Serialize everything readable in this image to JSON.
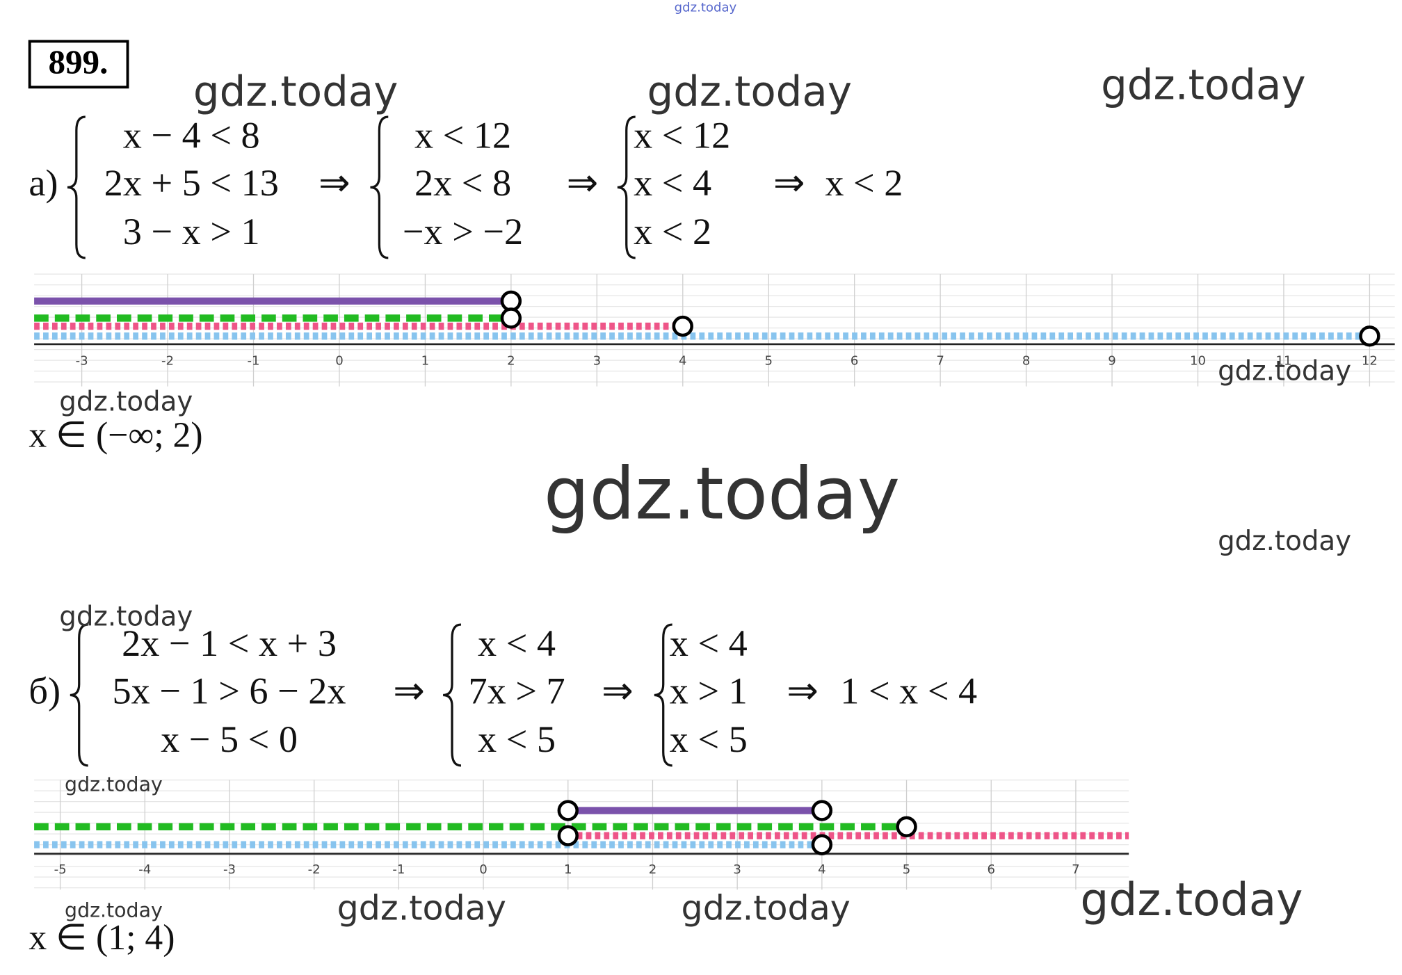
{
  "header": {
    "number": "899.",
    "top_watermark": "gdz.today"
  },
  "arrow": "⇒",
  "parts": [
    {
      "label": "а)",
      "steps": [
        [
          "x − 4 < 8",
          "2x + 5 < 13",
          "3 − x > 1"
        ],
        [
          "x < 12",
          "2x < 8",
          "−x > −2"
        ],
        [
          "x < 12",
          "x < 4",
          "x < 2"
        ]
      ],
      "result": "x < 2",
      "number_line": {
        "ticks": [
          -3,
          -2,
          -1,
          0,
          1,
          2,
          3,
          4,
          5,
          6,
          7,
          8,
          9,
          10,
          11,
          12
        ],
        "segments": [
          {
            "color": "#7b52ab",
            "style": "solid",
            "from": null,
            "to": 2
          },
          {
            "color": "#22bb22",
            "style": "dashed",
            "from": null,
            "to": 2
          },
          {
            "color": "#ee5588",
            "style": "dotted",
            "from": null,
            "to": 4
          },
          {
            "color": "#88c4ee",
            "style": "dotted",
            "from": null,
            "to": 12
          }
        ]
      },
      "answer": "x ∈ (−∞; 2)"
    },
    {
      "label": "б)",
      "steps": [
        [
          "2x − 1 < x + 3",
          "5x − 1 > 6 − 2x",
          "x − 5 < 0"
        ],
        [
          "x < 4",
          "7x > 7",
          "x < 5"
        ],
        [
          "x < 4",
          "x > 1",
          "x < 5"
        ]
      ],
      "result": "1 < x < 4",
      "number_line": {
        "ticks": [
          -5,
          -4,
          -3,
          -2,
          -1,
          0,
          1,
          2,
          3,
          4,
          5,
          6,
          7
        ],
        "segments": [
          {
            "color": "#7b52ab",
            "style": "solid",
            "from": 1,
            "to": 4
          },
          {
            "color": "#22bb22",
            "style": "dashed",
            "from": null,
            "to": 5
          },
          {
            "color": "#ee5588",
            "style": "dotted",
            "from": 1,
            "to": null
          },
          {
            "color": "#88c4ee",
            "style": "dotted",
            "from": null,
            "to": 4
          }
        ]
      },
      "answer": "x ∈ (1; 4)"
    }
  ],
  "watermarks": [
    "gdz.today",
    "gdz.today",
    "gdz.today",
    "gdz.today",
    "gdz.today",
    "gdz.today",
    "gdz.today",
    "gdz.today",
    "gdz.today",
    "gdz.today",
    "gdz.today",
    "gdz.today",
    "gdz.today"
  ]
}
